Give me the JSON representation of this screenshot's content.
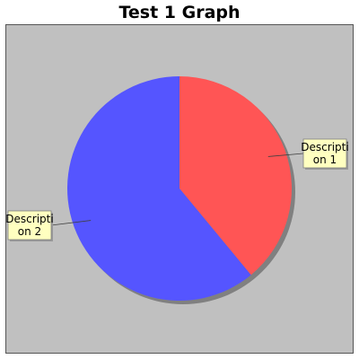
{
  "chart_data": {
    "type": "pie",
    "title": "Test 1 Graph",
    "categories": [
      "Description 1",
      "Description 2"
    ],
    "values": [
      39,
      61
    ],
    "colors": [
      "#ff5555",
      "#5555ff"
    ],
    "labels": [
      {
        "line1": "Descripti",
        "line2": "on 1"
      },
      {
        "line1": "Descripti",
        "line2": "on 2"
      }
    ],
    "plot_background": "#c0c0c0",
    "label_background": "#ffffc0",
    "legend": "none"
  }
}
